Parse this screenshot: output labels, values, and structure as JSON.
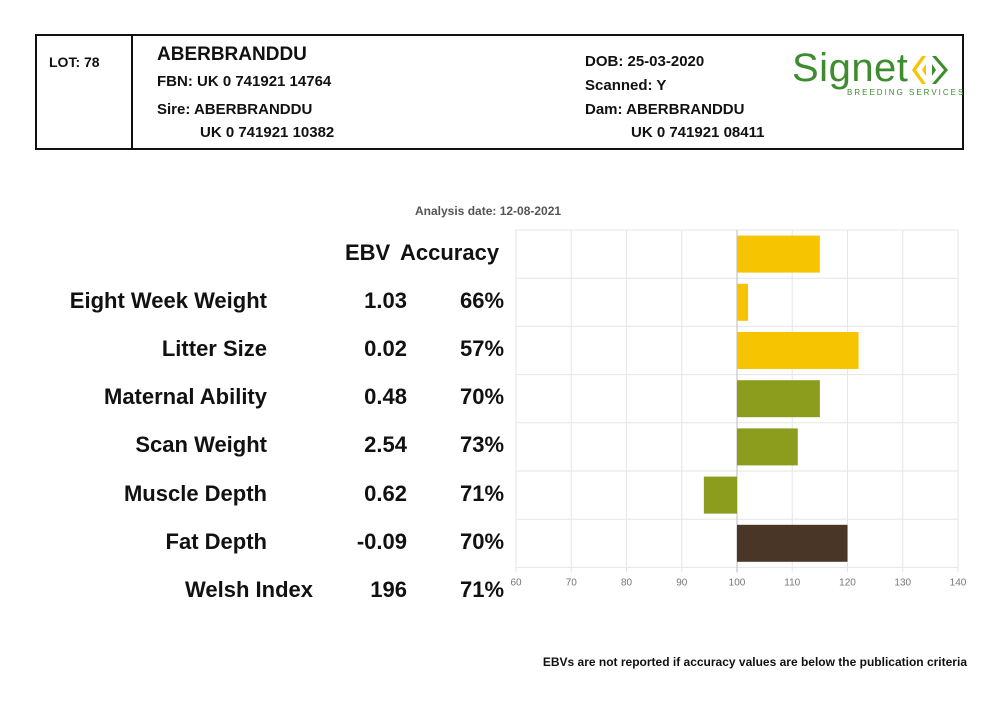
{
  "header": {
    "lot": "LOT: 78",
    "name": "ABERBRANDDU",
    "fbn": "FBN: UK 0 741921 14764",
    "sire_label": "Sire: ABERBRANDDU",
    "sire_id": "UK 0 741921 10382",
    "dob": "DOB: 25-03-2020",
    "scanned": "Scanned: Y",
    "dam_label": "Dam: ABERBRANDDU",
    "dam_id": "UK 0 741921 08411",
    "logo_text": "Signet",
    "logo_subtext": "BREEDING SERVICES"
  },
  "analysis_date": "Analysis date: 12-08-2021",
  "columns": {
    "ebv": "EBV",
    "accuracy": "Accuracy"
  },
  "traits": [
    {
      "label": "Eight Week Weight",
      "ebv": "1.03",
      "accuracy": "66%"
    },
    {
      "label": "Litter Size",
      "ebv": "0.02",
      "accuracy": "57%"
    },
    {
      "label": "Maternal Ability",
      "ebv": "0.48",
      "accuracy": "70%"
    },
    {
      "label": "Scan Weight",
      "ebv": "2.54",
      "accuracy": "73%"
    },
    {
      "label": "Muscle Depth",
      "ebv": "0.62",
      "accuracy": "71%"
    },
    {
      "label": "Fat Depth",
      "ebv": "-0.09",
      "accuracy": "70%"
    },
    {
      "label": "Welsh Index",
      "ebv": "196",
      "accuracy": "71%"
    }
  ],
  "footnote": "EBVs are not reported if accuracy values are below the publication criteria",
  "chart_data": {
    "type": "bar",
    "orientation": "horizontal",
    "baseline": 100,
    "xlim": [
      60,
      140
    ],
    "xticks": [
      "60",
      "70",
      "80",
      "90",
      "100",
      "110",
      "120",
      "130",
      "140"
    ],
    "grid": true,
    "categories": [
      "Eight Week Weight",
      "Litter Size",
      "Maternal Ability",
      "Scan Weight",
      "Muscle Depth",
      "Fat Depth",
      "Welsh Index"
    ],
    "values": [
      115,
      102,
      122,
      115,
      111,
      94,
      120
    ],
    "colors": [
      "#f6c400",
      "#f6c400",
      "#f6c400",
      "#8c9c1c",
      "#8c9c1c",
      "#8c9c1c",
      "#4a3626"
    ]
  }
}
